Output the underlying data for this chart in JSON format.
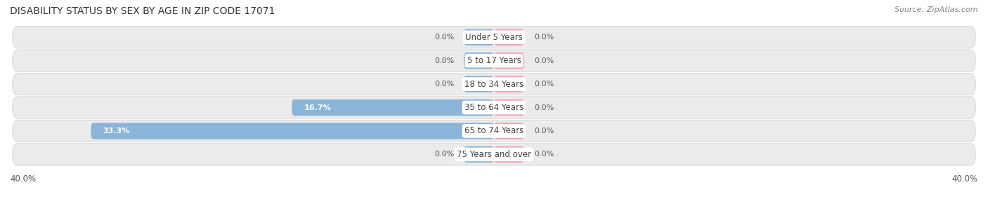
{
  "title": "DISABILITY STATUS BY SEX BY AGE IN ZIP CODE 17071",
  "source": "Source: ZipAtlas.com",
  "categories": [
    "Under 5 Years",
    "5 to 17 Years",
    "18 to 34 Years",
    "35 to 64 Years",
    "65 to 74 Years",
    "75 Years and over"
  ],
  "male_values": [
    0.0,
    0.0,
    0.0,
    16.7,
    33.3,
    0.0
  ],
  "female_values": [
    0.0,
    0.0,
    0.0,
    0.0,
    0.0,
    0.0
  ],
  "male_color": "#8ab4d8",
  "female_color": "#f4a0b0",
  "row_bg_color": "#ebebeb",
  "axis_max": 40.0,
  "label_fontsize": 8.5,
  "title_fontsize": 10,
  "source_fontsize": 8,
  "category_fontsize": 8.5,
  "value_fontsize": 8.0
}
